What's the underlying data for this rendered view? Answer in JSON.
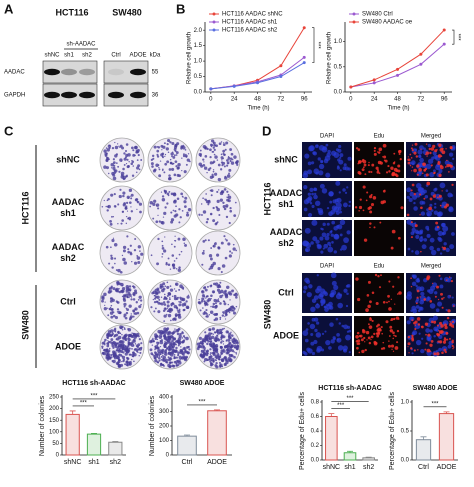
{
  "panel_labels": [
    "A",
    "B",
    "C",
    "D"
  ],
  "western": {
    "groups": [
      "HCT116",
      "SW480"
    ],
    "subgroup": "sh-AADAC",
    "lanes": [
      "shNC",
      "sh1",
      "sh2",
      "Ctrl",
      "ADOE"
    ],
    "unit": "kDa",
    "proteins": [
      "AADAC",
      "GAPDH"
    ],
    "sizes": [
      "55",
      "36"
    ]
  },
  "colony": {
    "groups": [
      "HCT116",
      "SW480"
    ],
    "rows": [
      [
        "shNC"
      ],
      [
        "AADAC",
        "sh1"
      ],
      [
        "AADAC",
        "sh2"
      ],
      [
        "Ctrl"
      ],
      [
        "ADOE"
      ]
    ]
  },
  "edu": {
    "groups": [
      "HCT116",
      "SW480"
    ],
    "columns": [
      "DAPI",
      "Edu",
      "Merged"
    ],
    "rows": [
      [
        "shNC"
      ],
      [
        "AADAC",
        "sh1"
      ],
      [
        "AADAC",
        "sh2"
      ],
      [
        "Ctrl"
      ],
      [
        "ADOE"
      ]
    ]
  },
  "chart_data": [
    {
      "type": "line",
      "xlabel": "Time (h)",
      "ylabel": "Relative cell growth",
      "x": [
        0,
        24,
        48,
        72,
        96
      ],
      "xlim": [
        -6,
        104
      ],
      "xticks": [
        0,
        24,
        48,
        72,
        96
      ],
      "ylim": [
        0,
        2.2
      ],
      "yticks": [
        {
          "value": 0,
          "label": "0.0"
        },
        0.5,
        {
          "value": 1,
          "label": "1.0"
        },
        1.5,
        {
          "value": 2,
          "label": "2.0"
        }
      ],
      "annotations": [
        "***"
      ],
      "series": [
        {
          "name": "HCT116 AADAC shNC",
          "color": "#e8443a",
          "values": [
            0.1,
            0.2,
            0.38,
            0.85,
            2.08
          ]
        },
        {
          "name": "HCT116 AADAC sh1",
          "color": "#9b59d0",
          "values": [
            0.1,
            0.2,
            0.33,
            0.55,
            1.12
          ]
        },
        {
          "name": "HCT116 AADAC sh2",
          "color": "#5a6fe0",
          "values": [
            0.1,
            0.18,
            0.3,
            0.5,
            0.95
          ]
        }
      ]
    },
    {
      "type": "line",
      "xlabel": "Time (h)",
      "ylabel": "Relative cell growth",
      "x": [
        0,
        24,
        48,
        72,
        96
      ],
      "xlim": [
        -6,
        104
      ],
      "xticks": [
        0,
        24,
        48,
        72,
        96
      ],
      "ylim": [
        0,
        1.35
      ],
      "yticks": [
        {
          "value": 0,
          "label": "0.0"
        },
        0.5,
        {
          "value": 1,
          "label": "1.0"
        }
      ],
      "annotations": [
        "***"
      ],
      "series": [
        {
          "name": "SW480 Ctrl",
          "color": "#9b59d0",
          "values": [
            0.1,
            0.18,
            0.33,
            0.55,
            0.95
          ]
        },
        {
          "name": "SW480 AADAC oe",
          "color": "#e8443a",
          "values": [
            0.1,
            0.24,
            0.45,
            0.75,
            1.23
          ]
        }
      ]
    },
    {
      "type": "bar",
      "title": "HCT116 sh-AADAC",
      "ylabel": "Number of colonies",
      "categories": [
        "shNC",
        "sh1",
        "sh2"
      ],
      "values": [
        175,
        90,
        55
      ],
      "errors": [
        15,
        3,
        3
      ],
      "colors": [
        "#d9534f",
        "#4caf50",
        "#888888"
      ],
      "ylim": [
        0,
        250
      ],
      "yticks": [
        0,
        50,
        100,
        150,
        200,
        250
      ],
      "annotations": [
        "***",
        "***"
      ]
    },
    {
      "type": "bar",
      "title": "SW480 ADOE",
      "ylabel": "Number of colonies",
      "categories": [
        "Ctrl",
        "ADOE"
      ],
      "values": [
        130,
        305
      ],
      "errors": [
        8,
        6
      ],
      "colors": [
        "#7f8c9a",
        "#d9534f"
      ],
      "ylim": [
        0,
        400
      ],
      "yticks": [
        0,
        100,
        200,
        300,
        400
      ],
      "annotations": [
        "***"
      ]
    },
    {
      "type": "bar",
      "title": "HCT116 sh-AADAC",
      "ylabel": "Percentage of Edu+ cells",
      "categories": [
        "shNC",
        "sh1",
        "sh2"
      ],
      "values": [
        0.6,
        0.1,
        0.03
      ],
      "errors": [
        0.04,
        0.02,
        0.01
      ],
      "colors": [
        "#d9534f",
        "#4caf50",
        "#888888"
      ],
      "ylim": [
        0,
        0.8
      ],
      "yticks": [
        {
          "value": 0,
          "label": "0.0"
        },
        0.2,
        0.4,
        0.6,
        0.8
      ],
      "annotations": [
        "***",
        "***"
      ]
    },
    {
      "type": "bar",
      "title": "SW480 ADOE",
      "ylabel": "Percentage of Edu+ cells",
      "categories": [
        "Ctrl",
        "ADOE"
      ],
      "values": [
        0.35,
        0.8
      ],
      "errors": [
        0.05,
        0.03
      ],
      "colors": [
        "#7f8c9a",
        "#d9534f"
      ],
      "ylim": [
        0,
        1
      ],
      "yticks": [
        {
          "value": 0,
          "label": "0.0"
        },
        0.5,
        {
          "value": 1,
          "label": "1.0"
        }
      ],
      "annotations": [
        "***"
      ]
    }
  ]
}
